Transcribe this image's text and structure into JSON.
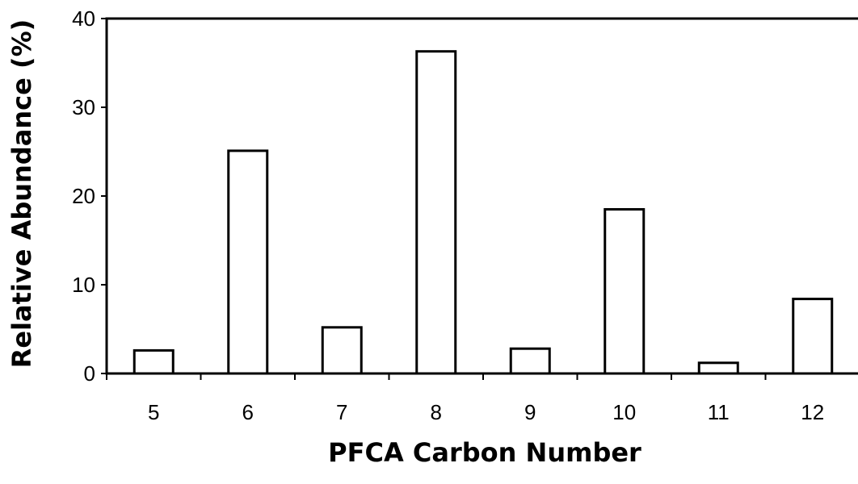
{
  "chart_data": {
    "type": "bar",
    "categories": [
      "5",
      "6",
      "7",
      "8",
      "9",
      "10",
      "11",
      "12"
    ],
    "values": [
      2.6,
      25.1,
      5.2,
      36.3,
      2.8,
      18.5,
      1.2,
      8.4
    ],
    "xlabel": "PFCA Carbon Number",
    "ylabel": "Relative Abundance (%)",
    "ylim": [
      0,
      40
    ],
    "yticks": [
      "0",
      "10",
      "20",
      "30",
      "40"
    ],
    "grid": false,
    "colors": {
      "bar_fill": "#ffffff",
      "bar_stroke": "#000000",
      "axis": "#000000"
    }
  }
}
